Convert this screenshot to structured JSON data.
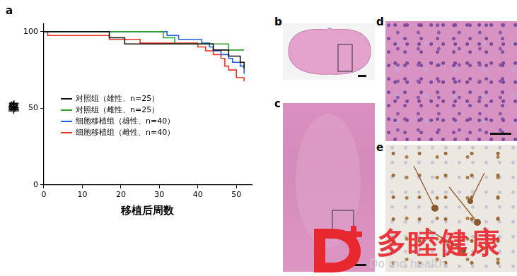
{
  "panels": [
    "a",
    "b",
    "c",
    "d",
    "e"
  ],
  "chart_data": {
    "type": "line",
    "x_label": "移植后周数",
    "y_label": "生存率",
    "xlim": [
      0,
      54
    ],
    "xticks": [
      0,
      10,
      20,
      30,
      40,
      50
    ],
    "ylim": [
      0,
      105
    ],
    "yticks": [
      0,
      50,
      100
    ],
    "grid": false,
    "legend": "left",
    "line_style": "step",
    "series": [
      {
        "name": "对照组（雄性、n=25）",
        "color": "#111111",
        "x": [
          0,
          17,
          21,
          44,
          48,
          51,
          52
        ],
        "values": [
          100,
          96,
          92,
          88,
          84,
          80,
          76
        ]
      },
      {
        "name": "对照组（雌性、n=25）",
        "color": "#2ea02e",
        "x": [
          0,
          31,
          34,
          48,
          52
        ],
        "values": [
          100,
          96,
          92,
          88,
          88
        ]
      },
      {
        "name": "细胞移植组（雄性、n=40）",
        "color": "#1f5fe0",
        "x": [
          0,
          32,
          35,
          41,
          43,
          44,
          46,
          48,
          49,
          51,
          52
        ],
        "values": [
          100,
          97.5,
          95,
          92.5,
          90,
          87.5,
          85,
          82.5,
          80,
          77.5,
          72.5
        ]
      },
      {
        "name": "细胞移植组（雌性、n=40）",
        "color": "#e8351f",
        "x": [
          0,
          1,
          17,
          25,
          40,
          42,
          44,
          46,
          47,
          48,
          50,
          52
        ],
        "values": [
          100,
          97.5,
          95,
          92.5,
          90,
          87.5,
          85,
          82.5,
          77.5,
          75,
          70,
          67.5
        ]
      }
    ]
  },
  "watermark": {
    "text": "多睦健康",
    "subtext": "Do mo health"
  }
}
